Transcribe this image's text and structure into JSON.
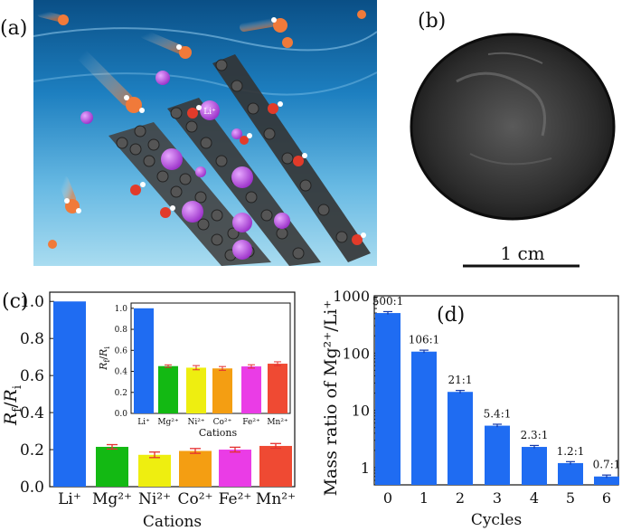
{
  "panel_labels": {
    "a": "(a)",
    "b": "(b)",
    "c": "(c)",
    "d": "(d)"
  },
  "illustration": {
    "ion_label": "Li⁺",
    "colors": {
      "water_top": "#0a4f86",
      "water_mid": "#1d7fc0",
      "water_bottom": "#a9dcf0",
      "carbon": "#3a3a3a",
      "ion": "#b24fd8",
      "oxygen": "#e23b2a",
      "hydrogen": "#ffffff",
      "ion_tail": "#7a5cff",
      "cation_tail": "#ff7a2a"
    }
  },
  "photo": {
    "scale_label": "1 cm"
  },
  "chart_data": [
    {
      "type": "bar",
      "title": "",
      "categories": [
        "Li⁺",
        "Mg²⁺",
        "Ni²⁺",
        "Co²⁺",
        "Fe²⁺",
        "Mn²⁺"
      ],
      "values": [
        1.0,
        0.215,
        0.172,
        0.193,
        0.2,
        0.22
      ],
      "errors": [
        0.0,
        0.012,
        0.015,
        0.013,
        0.013,
        0.013
      ],
      "colors": [
        "#1f6cf2",
        "#13b913",
        "#eeee10",
        "#f49e12",
        "#ea3ce6",
        "#ef4a33"
      ],
      "error_color": "#e53030",
      "xlabel": "Cations",
      "ylabel_main": "R",
      "ylabel_sub1": "f",
      "ylabel_slash": "/",
      "ylabel_sub2": "i",
      "ylim": [
        0,
        1.05
      ],
      "yticks": [
        "0.0",
        "0.2",
        "0.4",
        "0.6",
        "0.8",
        "1.0"
      ],
      "inset": {
        "type": "bar",
        "categories": [
          "Li⁺",
          "Mg²⁺",
          "Ni²⁺",
          "Co²⁺",
          "Fe²⁺",
          "Mn²⁺"
        ],
        "values": [
          1.0,
          0.45,
          0.435,
          0.428,
          0.447,
          0.473
        ],
        "errors": [
          0.0,
          0.012,
          0.02,
          0.018,
          0.016,
          0.018
        ],
        "xlabel": "Cations",
        "ylim": [
          0,
          1.05
        ],
        "yticks": [
          "0.0",
          "0.2",
          "0.4",
          "0.6",
          "0.8",
          "1.0"
        ]
      }
    },
    {
      "type": "bar",
      "scale": "log",
      "title": "",
      "categories": [
        "0",
        "1",
        "2",
        "3",
        "4",
        "5",
        "6"
      ],
      "values": [
        500,
        106,
        21,
        5.4,
        2.3,
        1.2,
        0.7
      ],
      "data_labels": [
        "500:1",
        "106:1",
        "21:1",
        "5.4:1",
        "2.3:1",
        "1.2:1",
        "0.7:1"
      ],
      "color": "#1f6cf2",
      "error_color": "#1238a8",
      "xlabel": "Cycles",
      "ylabel": "Mass ratio of Mg²⁺/Li⁺",
      "ylim": [
        0.5,
        1000
      ],
      "yticks": [
        {
          "value": 1,
          "label": "1"
        },
        {
          "value": 10,
          "label": "10"
        },
        {
          "value": 100,
          "label": "100"
        },
        {
          "value": 1000,
          "label": "1000"
        }
      ]
    }
  ]
}
